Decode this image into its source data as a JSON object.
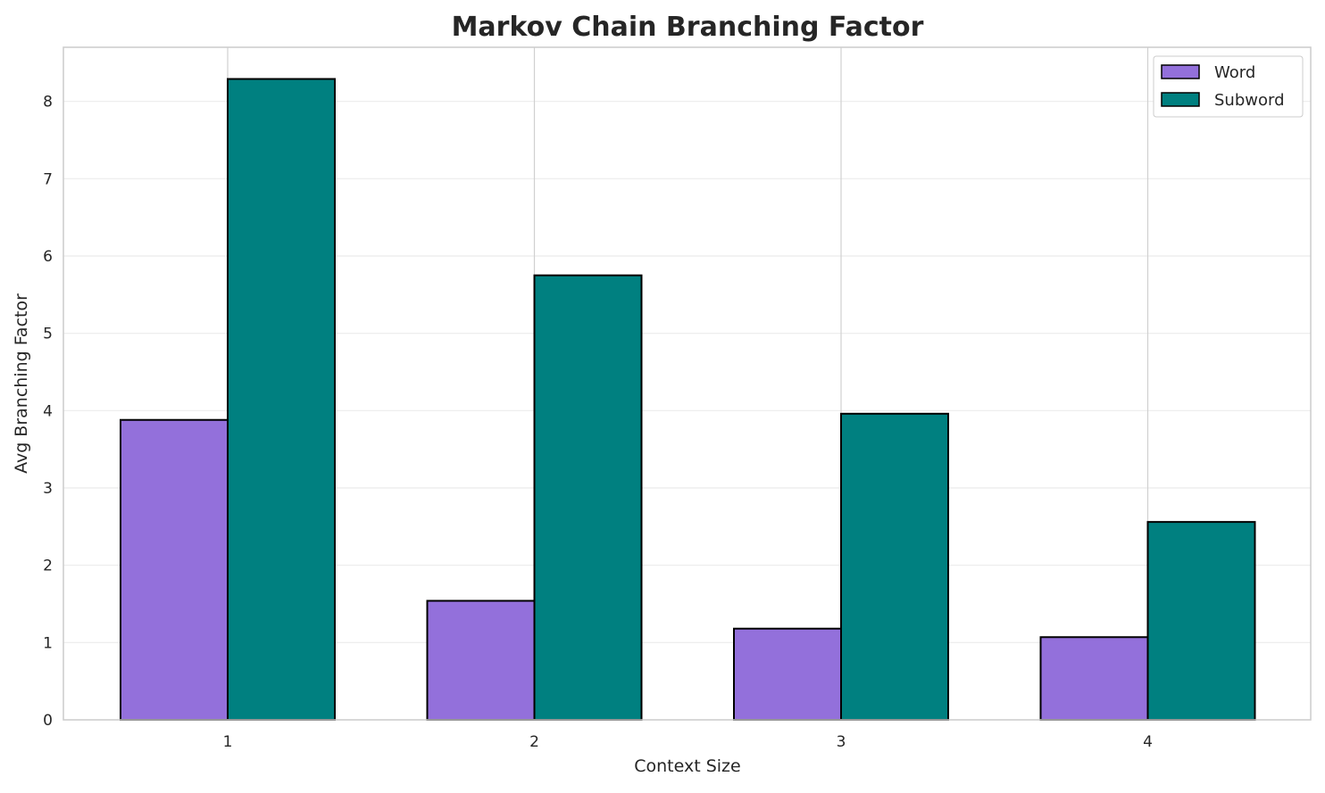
{
  "chart_data": {
    "type": "bar",
    "title": "Markov Chain Branching Factor",
    "xlabel": "Context Size",
    "ylabel": "Avg Branching Factor",
    "categories": [
      "1",
      "2",
      "3",
      "4"
    ],
    "series": [
      {
        "name": "Word",
        "color": "#9370db",
        "values": [
          3.88,
          1.54,
          1.18,
          1.07
        ]
      },
      {
        "name": "Subword",
        "color": "#008080",
        "values": [
          8.29,
          5.75,
          3.96,
          2.56
        ]
      }
    ],
    "yticks": [
      0,
      1,
      2,
      3,
      4,
      5,
      6,
      7,
      8
    ],
    "ylim": [
      0,
      8.7
    ],
    "grid": true,
    "legend_position": "top-right"
  }
}
